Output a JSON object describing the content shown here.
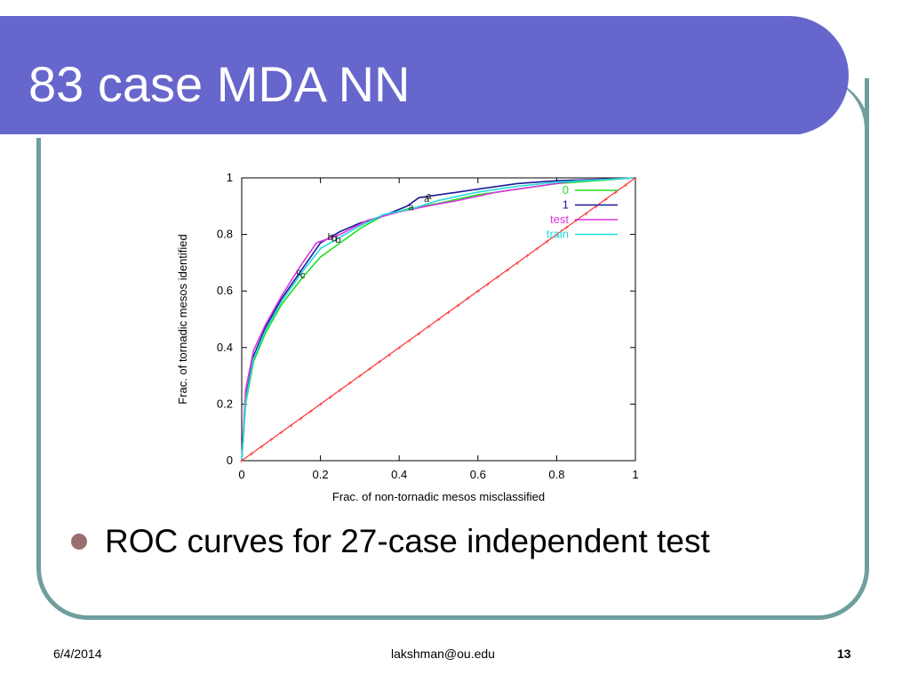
{
  "slide": {
    "title": "83 case MDA NN",
    "bullet": "ROC curves for 27-case independent test",
    "footer_date": "6/4/2014",
    "footer_email": "lakshman@ou.edu",
    "page_number": "13"
  },
  "colors": {
    "title_bar": "#6666cc",
    "frame": "#6f9e9e",
    "bullet": "#9c6f6f"
  },
  "chart_data": {
    "type": "line",
    "xlabel": "Frac. of non-tornadic mesos misclassified",
    "ylabel": "Frac. of tornadic mesos identified",
    "xlim": [
      0,
      1
    ],
    "ylim": [
      0,
      1
    ],
    "x_ticks": [
      "0",
      "0.2",
      "0.4",
      "0.6",
      "0.8",
      "1"
    ],
    "y_ticks": [
      "0",
      "0.2",
      "0.4",
      "0.6",
      "0.8",
      "1"
    ],
    "legend_position": "top-right",
    "grid": false,
    "series": [
      {
        "name": "0",
        "color": "#22dd22",
        "points": [
          [
            0,
            0
          ],
          [
            0.01,
            0.2
          ],
          [
            0.03,
            0.35
          ],
          [
            0.06,
            0.45
          ],
          [
            0.1,
            0.55
          ],
          [
            0.15,
            0.64
          ],
          [
            0.2,
            0.72
          ],
          [
            0.25,
            0.77
          ],
          [
            0.3,
            0.82
          ],
          [
            0.35,
            0.86
          ],
          [
            0.42,
            0.89
          ],
          [
            0.5,
            0.91
          ],
          [
            0.6,
            0.94
          ],
          [
            0.7,
            0.96
          ],
          [
            0.8,
            0.98
          ],
          [
            0.9,
            0.99
          ],
          [
            1,
            1
          ]
        ]
      },
      {
        "name": "1",
        "color": "#1a1a99",
        "points": [
          [
            0,
            0
          ],
          [
            0.01,
            0.22
          ],
          [
            0.03,
            0.37
          ],
          [
            0.06,
            0.47
          ],
          [
            0.1,
            0.57
          ],
          [
            0.15,
            0.67
          ],
          [
            0.2,
            0.77
          ],
          [
            0.25,
            0.81
          ],
          [
            0.3,
            0.84
          ],
          [
            0.35,
            0.86
          ],
          [
            0.42,
            0.9
          ],
          [
            0.45,
            0.93
          ],
          [
            0.5,
            0.94
          ],
          [
            0.6,
            0.96
          ],
          [
            0.7,
            0.98
          ],
          [
            0.8,
            0.99
          ],
          [
            1,
            1
          ]
        ]
      },
      {
        "name": "test",
        "color": "#dd33dd",
        "points": [
          [
            0,
            0
          ],
          [
            0.01,
            0.25
          ],
          [
            0.03,
            0.39
          ],
          [
            0.06,
            0.48
          ],
          [
            0.1,
            0.58
          ],
          [
            0.15,
            0.69
          ],
          [
            0.19,
            0.77
          ],
          [
            0.25,
            0.8
          ],
          [
            0.32,
            0.85
          ],
          [
            0.4,
            0.88
          ],
          [
            0.47,
            0.9
          ],
          [
            0.55,
            0.92
          ],
          [
            0.65,
            0.95
          ],
          [
            0.75,
            0.97
          ],
          [
            0.85,
            0.99
          ],
          [
            1,
            1
          ]
        ]
      },
      {
        "name": "train",
        "color": "#22dddd",
        "points": [
          [
            0,
            0
          ],
          [
            0.01,
            0.21
          ],
          [
            0.03,
            0.36
          ],
          [
            0.06,
            0.46
          ],
          [
            0.1,
            0.56
          ],
          [
            0.15,
            0.66
          ],
          [
            0.2,
            0.75
          ],
          [
            0.25,
            0.79
          ],
          [
            0.3,
            0.83
          ],
          [
            0.36,
            0.87
          ],
          [
            0.43,
            0.89
          ],
          [
            0.5,
            0.92
          ],
          [
            0.6,
            0.95
          ],
          [
            0.7,
            0.97
          ],
          [
            0.8,
            0.985
          ],
          [
            1,
            1
          ]
        ]
      },
      {
        "name": "",
        "color": "#ff3333",
        "points": [
          [
            0,
            0
          ],
          [
            1,
            1
          ]
        ]
      }
    ],
    "annotations": [
      {
        "text": "a",
        "x": 0.43,
        "y": 0.885
      },
      {
        "text": "a",
        "x": 0.47,
        "y": 0.915
      },
      {
        "text": "a",
        "x": 0.475,
        "y": 0.925
      },
      {
        "text": "b",
        "x": 0.225,
        "y": 0.78
      },
      {
        "text": "b",
        "x": 0.235,
        "y": 0.775
      },
      {
        "text": "b",
        "x": 0.245,
        "y": 0.77
      },
      {
        "text": "c",
        "x": 0.145,
        "y": 0.655
      },
      {
        "text": "c",
        "x": 0.155,
        "y": 0.645
      }
    ]
  }
}
